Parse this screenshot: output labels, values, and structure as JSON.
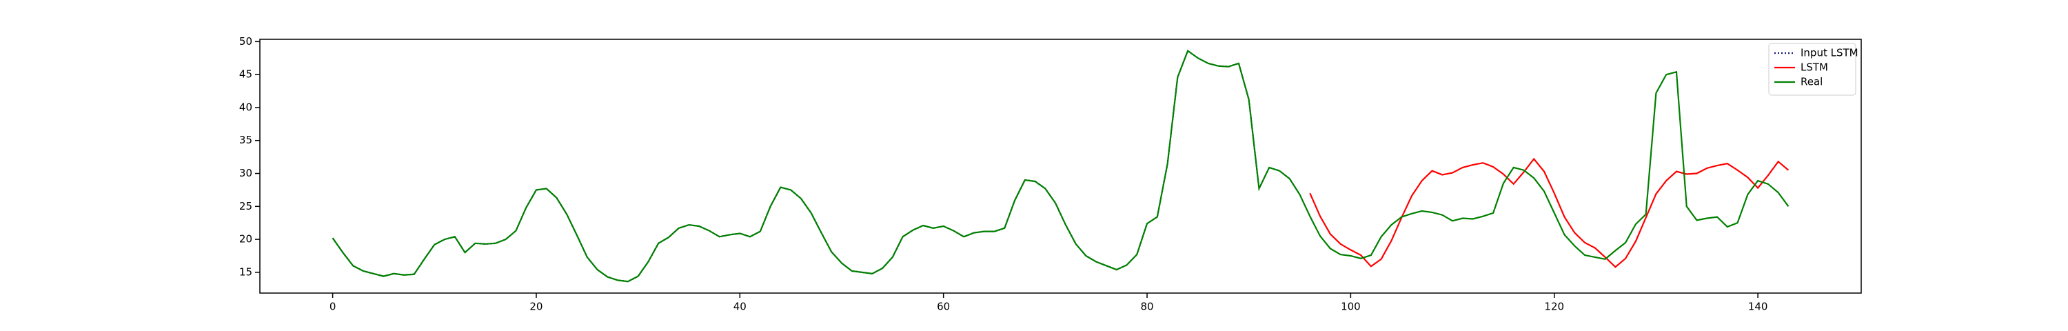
{
  "chart_data": {
    "type": "line",
    "x": [
      0,
      1,
      2,
      3,
      4,
      5,
      6,
      7,
      8,
      9,
      10,
      11,
      12,
      13,
      14,
      15,
      16,
      17,
      18,
      19,
      20,
      21,
      22,
      23,
      24,
      25,
      26,
      27,
      28,
      29,
      30,
      31,
      32,
      33,
      34,
      35,
      36,
      37,
      38,
      39,
      40,
      41,
      42,
      43,
      44,
      45,
      46,
      47,
      48,
      49,
      50,
      51,
      52,
      53,
      54,
      55,
      56,
      57,
      58,
      59,
      60,
      61,
      62,
      63,
      64,
      65,
      66,
      67,
      68,
      69,
      70,
      71,
      72,
      73,
      74,
      75,
      76,
      77,
      78,
      79,
      80,
      81,
      82,
      83,
      84,
      85,
      86,
      87,
      88,
      89,
      90,
      91,
      92,
      93,
      94,
      95,
      96,
      97,
      98,
      99,
      100,
      101,
      102,
      103,
      104,
      105,
      106,
      107,
      108,
      109,
      110,
      111,
      112,
      113,
      114,
      115,
      116,
      117,
      118,
      119,
      120,
      121,
      122,
      123,
      124,
      125,
      126,
      127,
      128,
      129,
      130,
      131,
      132,
      133,
      134,
      135,
      136,
      137,
      138,
      139,
      140,
      141,
      142,
      143
    ],
    "series": [
      {
        "name": "Input LSTM",
        "color": "#1a1a80",
        "linestyle": "dotted",
        "values": [
          20.2,
          18,
          16,
          15.2,
          14.8,
          14.4,
          14.8,
          14.6,
          14.7,
          17,
          19.2,
          20,
          20.4,
          18,
          19.4,
          19.3,
          19.4,
          20,
          21.3,
          24.8,
          27.5,
          27.7,
          26.3,
          23.8,
          20.6,
          17.3,
          15.4,
          14.3,
          13.8,
          13.6,
          14.4,
          16.6,
          19.4,
          20.3,
          21.7,
          22.2,
          22,
          21.3,
          20.4,
          20.7,
          20.9,
          20.4,
          21.2,
          25,
          27.9,
          27.5,
          26.2,
          24,
          21,
          18.1,
          16.4,
          15.2,
          15,
          14.8,
          15.6,
          17.3,
          20.4,
          21.4,
          22.1,
          21.7,
          22,
          21.3,
          20.4,
          21,
          21.2,
          21.2,
          21.7,
          25.9,
          29,
          28.8,
          27.7,
          25.5,
          22.2,
          19.3,
          17.5,
          16.6,
          16,
          15.4,
          16.1,
          17.7,
          22.4,
          23.4,
          31.4,
          44.6,
          48.6,
          47.5,
          46.7,
          46.3,
          46.2,
          46.7,
          41.2,
          27.7,
          30.9,
          30.4,
          29.2,
          26.8,
          null,
          null,
          null,
          null,
          null,
          null,
          null,
          null,
          null,
          null,
          null,
          null,
          null,
          null,
          null,
          null,
          null,
          null,
          null,
          null,
          null,
          null,
          null,
          null,
          null,
          null,
          null,
          null,
          null,
          null,
          null,
          null,
          null,
          null,
          null,
          null,
          null,
          null,
          null,
          null,
          null,
          null,
          null,
          null,
          null,
          null,
          null,
          null
        ]
      },
      {
        "name": "LSTM",
        "color": "#ff0000",
        "linestyle": "solid",
        "values": [
          null,
          null,
          null,
          null,
          null,
          null,
          null,
          null,
          null,
          null,
          null,
          null,
          null,
          null,
          null,
          null,
          null,
          null,
          null,
          null,
          null,
          null,
          null,
          null,
          null,
          null,
          null,
          null,
          null,
          null,
          null,
          null,
          null,
          null,
          null,
          null,
          null,
          null,
          null,
          null,
          null,
          null,
          null,
          null,
          null,
          null,
          null,
          null,
          null,
          null,
          null,
          null,
          null,
          null,
          null,
          null,
          null,
          null,
          null,
          null,
          null,
          null,
          null,
          null,
          null,
          null,
          null,
          null,
          null,
          null,
          null,
          null,
          null,
          null,
          null,
          null,
          null,
          null,
          null,
          null,
          null,
          null,
          null,
          null,
          null,
          null,
          null,
          null,
          null,
          null,
          null,
          null,
          null,
          null,
          null,
          null,
          27,
          23.5,
          20.8,
          19.3,
          18.4,
          17.6,
          15.9,
          17,
          19.8,
          23.3,
          26.6,
          28.9,
          30.4,
          29.8,
          30.1,
          30.9,
          31.3,
          31.6,
          31,
          29.9,
          28.4,
          30.2,
          32.2,
          30.3,
          27,
          23.4,
          21,
          19.5,
          18.7,
          17.3,
          15.8,
          17.1,
          19.7,
          23.3,
          26.9,
          28.9,
          30.3,
          29.9,
          30,
          30.8,
          31.2,
          31.5,
          30.5,
          29.4,
          27.8,
          29.7,
          31.8,
          30.5
        ]
      },
      {
        "name": "Real",
        "color": "#008000",
        "linestyle": "solid",
        "values": [
          20.2,
          18,
          16,
          15.2,
          14.8,
          14.4,
          14.8,
          14.6,
          14.7,
          17,
          19.2,
          20,
          20.4,
          18,
          19.4,
          19.3,
          19.4,
          20,
          21.3,
          24.8,
          27.5,
          27.7,
          26.3,
          23.8,
          20.6,
          17.3,
          15.4,
          14.3,
          13.8,
          13.6,
          14.4,
          16.6,
          19.4,
          20.3,
          21.7,
          22.2,
          22,
          21.3,
          20.4,
          20.7,
          20.9,
          20.4,
          21.2,
          25,
          27.9,
          27.5,
          26.2,
          24,
          21,
          18.1,
          16.4,
          15.2,
          15,
          14.8,
          15.6,
          17.3,
          20.4,
          21.4,
          22.1,
          21.7,
          22,
          21.3,
          20.4,
          21,
          21.2,
          21.2,
          21.7,
          25.9,
          29,
          28.8,
          27.7,
          25.5,
          22.2,
          19.3,
          17.5,
          16.6,
          16,
          15.4,
          16.1,
          17.7,
          22.4,
          23.4,
          31.4,
          44.6,
          48.6,
          47.5,
          46.7,
          46.3,
          46.2,
          46.7,
          41.2,
          27.7,
          30.9,
          30.4,
          29.2,
          26.8,
          23.5,
          20.5,
          18.6,
          17.7,
          17.5,
          17.1,
          17.6,
          20.4,
          22.2,
          23.4,
          23.9,
          24.3,
          24.1,
          23.7,
          22.8,
          23.2,
          23.1,
          23.5,
          24,
          28.5,
          30.9,
          30.5,
          29.3,
          27.3,
          24,
          20.7,
          19,
          17.6,
          17.3,
          17,
          18.3,
          19.5,
          22.3,
          23.8,
          42.2,
          45,
          45.4,
          25,
          22.9,
          23.2,
          23.4,
          21.9,
          22.5,
          26.8,
          28.9,
          28.4,
          27.1,
          25
        ]
      }
    ],
    "xlim": [
      -7.15,
      150.15
    ],
    "xticks": [
      0,
      20,
      40,
      60,
      80,
      100,
      120,
      140
    ],
    "ylim": [
      11.85,
      50.35
    ],
    "yticks": [
      15,
      20,
      25,
      30,
      35,
      40,
      45,
      50
    ],
    "grid": false,
    "legend": "upper right"
  }
}
